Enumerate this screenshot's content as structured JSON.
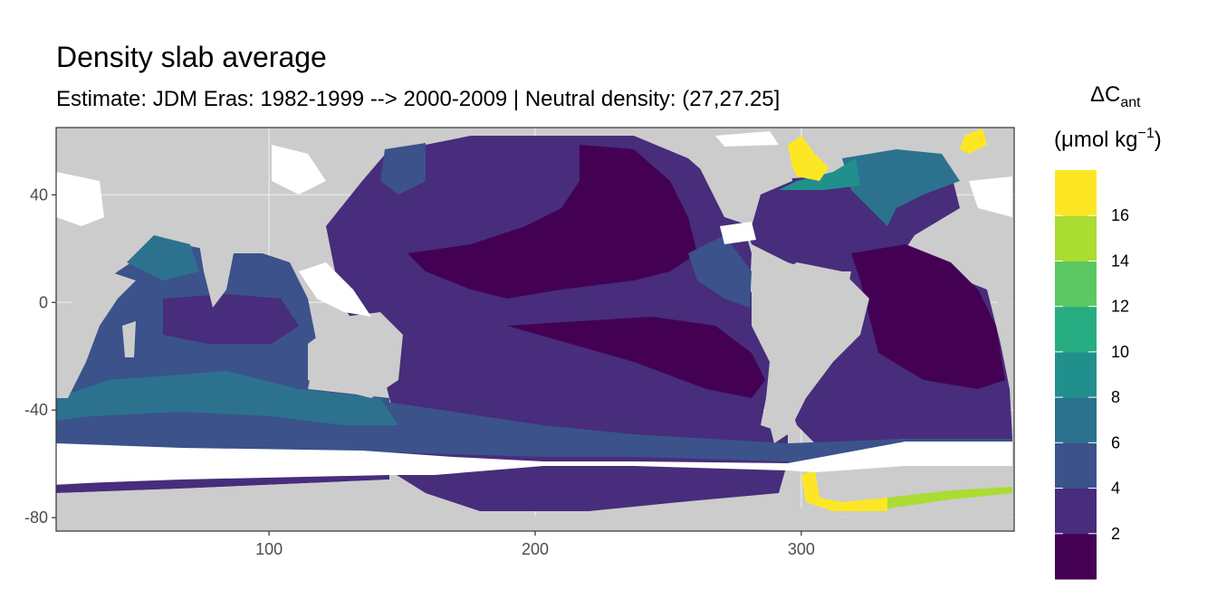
{
  "chart_data": {
    "type": "heatmap",
    "title": "Density slab average",
    "subtitle": "Estimate: JDM Eras: 1982-1999 --> 2000-2009 | Neutral density: (27,27.25]",
    "xlabel": "",
    "ylabel": "",
    "xlim": [
      20,
      380
    ],
    "ylim": [
      -85,
      65
    ],
    "x_ticks": [
      100,
      200,
      300
    ],
    "x_tick_labels": [
      "100",
      "200",
      "300"
    ],
    "y_ticks": [
      40,
      0,
      -40,
      -80
    ],
    "y_tick_labels": [
      "40",
      "0",
      "-40",
      "-80"
    ],
    "grid": true,
    "legend": {
      "title_main": "ΔC",
      "title_sub": "ant",
      "unit_main": "(μmol kg",
      "unit_sup": "−1",
      "unit_close": ")",
      "placement": "right",
      "breaks": [
        2,
        4,
        6,
        8,
        10,
        12,
        14,
        16
      ],
      "break_labels": [
        "2",
        "4",
        "6",
        "8",
        "10",
        "12",
        "14",
        "16"
      ],
      "colors": [
        "#440154",
        "#472d7b",
        "#3b528b",
        "#2c728e",
        "#21908d",
        "#27ad81",
        "#5cc863",
        "#aadc32",
        "#fde725"
      ]
    },
    "land_color": "#cccccc",
    "nodata_color": "#ffffff"
  }
}
